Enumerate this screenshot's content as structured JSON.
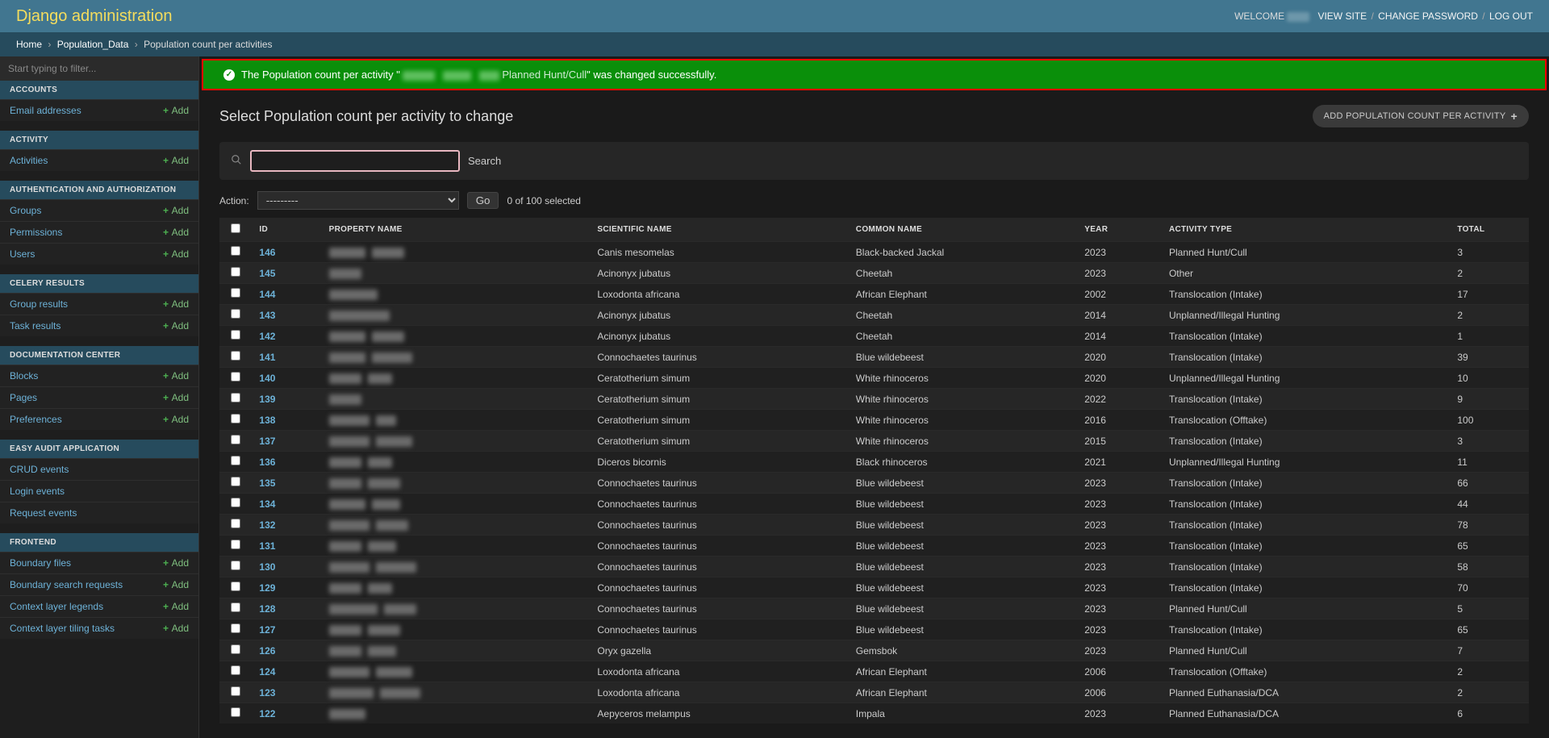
{
  "header": {
    "site_title": "Django administration",
    "welcome": "WELCOME",
    "view_site": "VIEW SITE",
    "change_password": "CHANGE PASSWORD",
    "logout": "LOG OUT"
  },
  "breadcrumbs": {
    "home": "Home",
    "app": "Population_Data",
    "model": "Population count per activities"
  },
  "sidebar": {
    "filter_placeholder": "Start typing to filter...",
    "add_label": "Add",
    "sections": [
      {
        "caption": "ACCOUNTS",
        "items": [
          {
            "label": "Email addresses",
            "add": true
          }
        ]
      },
      {
        "caption": "ACTIVITY",
        "items": [
          {
            "label": "Activities",
            "add": true
          }
        ]
      },
      {
        "caption": "AUTHENTICATION AND AUTHORIZATION",
        "items": [
          {
            "label": "Groups",
            "add": true
          },
          {
            "label": "Permissions",
            "add": true
          },
          {
            "label": "Users",
            "add": true
          }
        ]
      },
      {
        "caption": "CELERY RESULTS",
        "items": [
          {
            "label": "Group results",
            "add": true
          },
          {
            "label": "Task results",
            "add": true
          }
        ]
      },
      {
        "caption": "DOCUMENTATION CENTER",
        "items": [
          {
            "label": "Blocks",
            "add": true
          },
          {
            "label": "Pages",
            "add": true
          },
          {
            "label": "Preferences",
            "add": true
          }
        ]
      },
      {
        "caption": "EASY AUDIT APPLICATION",
        "items": [
          {
            "label": "CRUD events",
            "add": false
          },
          {
            "label": "Login events",
            "add": false
          },
          {
            "label": "Request events",
            "add": false
          }
        ]
      },
      {
        "caption": "FRONTEND",
        "items": [
          {
            "label": "Boundary files",
            "add": true
          },
          {
            "label": "Boundary search requests",
            "add": true
          },
          {
            "label": "Context layer legends",
            "add": true
          },
          {
            "label": "Context layer tiling tasks",
            "add": true
          }
        ]
      }
    ]
  },
  "message": {
    "prefix": "The Population count per activity \"",
    "link": "Planned Hunt/Cull",
    "suffix": "\" was changed successfully."
  },
  "content": {
    "page_title": "Select Population count per activity to change",
    "add_button": "ADD POPULATION COUNT PER ACTIVITY",
    "search_label": "Search",
    "action_label": "Action:",
    "action_placeholder": "---------",
    "go_label": "Go",
    "selection_text": "0 of 100 selected"
  },
  "table": {
    "columns": [
      "",
      "ID",
      "PROPERTY NAME",
      "SCIENTIFIC NAME",
      "COMMON NAME",
      "YEAR",
      "ACTIVITY TYPE",
      "TOTAL"
    ],
    "col_widths": [
      "30px",
      "70px",
      "270px",
      "260px",
      "230px",
      "85px",
      "290px",
      "80px"
    ],
    "rows": [
      {
        "id": "146",
        "prop_widths": [
          45,
          40
        ],
        "sci": "Canis mesomelas",
        "common": "Black-backed Jackal",
        "year": "2023",
        "activity": "Planned Hunt/Cull",
        "total": "3"
      },
      {
        "id": "145",
        "prop_widths": [
          40
        ],
        "sci": "Acinonyx jubatus",
        "common": "Cheetah",
        "year": "2023",
        "activity": "Other",
        "total": "2"
      },
      {
        "id": "144",
        "prop_widths": [
          60
        ],
        "sci": "Loxodonta africana",
        "common": "African Elephant",
        "year": "2002",
        "activity": "Translocation (Intake)",
        "total": "17"
      },
      {
        "id": "143",
        "prop_widths": [
          75
        ],
        "sci": "Acinonyx jubatus",
        "common": "Cheetah",
        "year": "2014",
        "activity": "Unplanned/Illegal Hunting",
        "total": "2"
      },
      {
        "id": "142",
        "prop_widths": [
          45,
          40
        ],
        "sci": "Acinonyx jubatus",
        "common": "Cheetah",
        "year": "2014",
        "activity": "Translocation (Intake)",
        "total": "1"
      },
      {
        "id": "141",
        "prop_widths": [
          45,
          50
        ],
        "sci": "Connochaetes taurinus",
        "common": "Blue wildebeest",
        "year": "2020",
        "activity": "Translocation (Intake)",
        "total": "39"
      },
      {
        "id": "140",
        "prop_widths": [
          40,
          30
        ],
        "sci": "Ceratotherium simum",
        "common": "White rhinoceros",
        "year": "2020",
        "activity": "Unplanned/Illegal Hunting",
        "total": "10"
      },
      {
        "id": "139",
        "prop_widths": [
          40
        ],
        "sci": "Ceratotherium simum",
        "common": "White rhinoceros",
        "year": "2022",
        "activity": "Translocation (Intake)",
        "total": "9"
      },
      {
        "id": "138",
        "prop_widths": [
          50,
          25
        ],
        "sci": "Ceratotherium simum",
        "common": "White rhinoceros",
        "year": "2016",
        "activity": "Translocation (Offtake)",
        "total": "100"
      },
      {
        "id": "137",
        "prop_widths": [
          50,
          45
        ],
        "sci": "Ceratotherium simum",
        "common": "White rhinoceros",
        "year": "2015",
        "activity": "Translocation (Intake)",
        "total": "3"
      },
      {
        "id": "136",
        "prop_widths": [
          40,
          30
        ],
        "sci": "Diceros bicornis",
        "common": "Black rhinoceros",
        "year": "2021",
        "activity": "Unplanned/Illegal Hunting",
        "total": "11"
      },
      {
        "id": "135",
        "prop_widths": [
          40,
          40
        ],
        "sci": "Connochaetes taurinus",
        "common": "Blue wildebeest",
        "year": "2023",
        "activity": "Translocation (Intake)",
        "total": "66"
      },
      {
        "id": "134",
        "prop_widths": [
          45,
          35
        ],
        "sci": "Connochaetes taurinus",
        "common": "Blue wildebeest",
        "year": "2023",
        "activity": "Translocation (Intake)",
        "total": "44"
      },
      {
        "id": "132",
        "prop_widths": [
          50,
          40
        ],
        "sci": "Connochaetes taurinus",
        "common": "Blue wildebeest",
        "year": "2023",
        "activity": "Translocation (Intake)",
        "total": "78"
      },
      {
        "id": "131",
        "prop_widths": [
          40,
          35
        ],
        "sci": "Connochaetes taurinus",
        "common": "Blue wildebeest",
        "year": "2023",
        "activity": "Translocation (Intake)",
        "total": "65"
      },
      {
        "id": "130",
        "prop_widths": [
          50,
          50
        ],
        "sci": "Connochaetes taurinus",
        "common": "Blue wildebeest",
        "year": "2023",
        "activity": "Translocation (Intake)",
        "total": "58"
      },
      {
        "id": "129",
        "prop_widths": [
          40,
          30
        ],
        "sci": "Connochaetes taurinus",
        "common": "Blue wildebeest",
        "year": "2023",
        "activity": "Translocation (Intake)",
        "total": "70"
      },
      {
        "id": "128",
        "prop_widths": [
          60,
          40
        ],
        "sci": "Connochaetes taurinus",
        "common": "Blue wildebeest",
        "year": "2023",
        "activity": "Planned Hunt/Cull",
        "total": "5"
      },
      {
        "id": "127",
        "prop_widths": [
          40,
          40
        ],
        "sci": "Connochaetes taurinus",
        "common": "Blue wildebeest",
        "year": "2023",
        "activity": "Translocation (Intake)",
        "total": "65"
      },
      {
        "id": "126",
        "prop_widths": [
          40,
          35
        ],
        "sci": "Oryx gazella",
        "common": "Gemsbok",
        "year": "2023",
        "activity": "Planned Hunt/Cull",
        "total": "7"
      },
      {
        "id": "124",
        "prop_widths": [
          50,
          45
        ],
        "sci": "Loxodonta africana",
        "common": "African Elephant",
        "year": "2006",
        "activity": "Translocation (Offtake)",
        "total": "2"
      },
      {
        "id": "123",
        "prop_widths": [
          55,
          50
        ],
        "sci": "Loxodonta africana",
        "common": "African Elephant",
        "year": "2006",
        "activity": "Planned Euthanasia/DCA",
        "total": "2"
      },
      {
        "id": "122",
        "prop_widths": [
          45
        ],
        "sci": "Aepyceros melampus",
        "common": "Impala",
        "year": "2023",
        "activity": "Planned Euthanasia/DCA",
        "total": "6"
      }
    ]
  }
}
